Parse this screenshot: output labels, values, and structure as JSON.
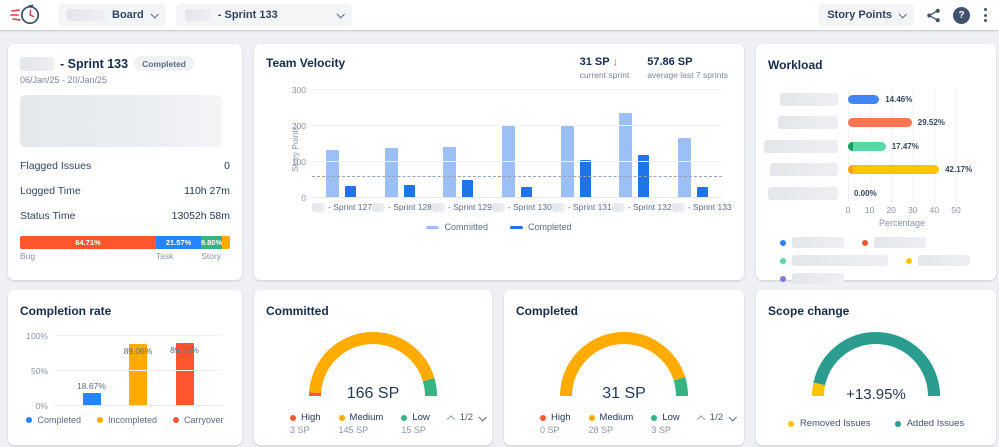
{
  "topbar": {
    "board_dropdown": "Board",
    "sprint_dropdown": "- Sprint 133",
    "unit_dropdown": "Story Points",
    "help_glyph": "?"
  },
  "cards": {
    "sprint": {
      "title": "- Sprint 133",
      "badge": "Completed",
      "dates": "06/Jan/25 - 20/Jan/25",
      "stats": [
        {
          "label": "Flagged Issues",
          "value": "0"
        },
        {
          "label": "Logged Time",
          "value": "110h 27m"
        },
        {
          "label": "Status Time",
          "value": "13052h 58m"
        }
      ]
    },
    "velocity": {
      "title": "Team Velocity",
      "current_value": "31 SP",
      "current_trend": "↓",
      "current_caption": "current sprint",
      "average_value": "57.86 SP",
      "average_caption": "average last 7 sprints"
    },
    "workload": {
      "title": "Workload"
    },
    "completion": {
      "title": "Completion rate"
    },
    "committed": {
      "title": "Committed"
    },
    "completed": {
      "title": "Completed"
    },
    "scope": {
      "title": "Scope change"
    }
  },
  "chart_data": {
    "issue_breakdown": {
      "type": "bar",
      "segments": [
        {
          "label": "Bug",
          "value_label": "64.71%",
          "pct": 64.71,
          "color": "#ff5630"
        },
        {
          "label": "Task",
          "value_label": "21.57%",
          "pct": 21.57,
          "color": "#2684ff"
        },
        {
          "label": "Story",
          "value_label": "9.80%",
          "pct": 9.8,
          "color": "#36b37e"
        },
        {
          "label": "",
          "value_label": "",
          "pct": 3.92,
          "color": "#ffab00"
        }
      ]
    },
    "team_velocity": {
      "type": "bar",
      "ylabel": "Story Points",
      "ylim": [
        0,
        300
      ],
      "yticks": [
        0,
        100,
        200,
        300
      ],
      "average_line": 57.86,
      "categories": [
        "- Sprint 127",
        "- Sprint 128",
        "- Sprint 129",
        "- Sprint 130",
        "- Sprint 131",
        "- Sprint 132",
        "- Sprint 133"
      ],
      "series": [
        {
          "name": "Committed",
          "color": "#9bc0f5",
          "values": [
            133,
            138,
            143,
            201,
            199,
            236,
            166
          ]
        },
        {
          "name": "Completed",
          "color": "#2173e8",
          "values": [
            32,
            37,
            50,
            31,
            105,
            119,
            31
          ]
        }
      ]
    },
    "workload": {
      "type": "bar-horizontal",
      "xlabel": "Percentage",
      "xlim": [
        0,
        50
      ],
      "xticks": [
        0,
        10,
        20,
        30,
        40,
        50
      ],
      "rows": [
        {
          "pct": 14.46,
          "label": "14.46%",
          "color": "#4285f4"
        },
        {
          "pct": 29.52,
          "label": "29.52%",
          "color": "#ff7452"
        },
        {
          "pct": 17.47,
          "label": "17.47%",
          "color": "#57d9a3",
          "accent": "#1f9e63"
        },
        {
          "pct": 42.17,
          "label": "42.17%",
          "color": "#ffc400",
          "accent": "#ff9f1a"
        },
        {
          "pct": 0,
          "label": "0.00%",
          "color": "#4285f4"
        }
      ],
      "legend_colors": [
        "#2684ff",
        "#ff5630",
        "#57d9a3",
        "#ffc400",
        "#8777d9"
      ]
    },
    "completion_rate": {
      "type": "bar",
      "ylim": [
        0,
        100
      ],
      "yticks": [
        "0%",
        "50%",
        "100%"
      ],
      "categories": [
        "Completed",
        "Incompleted",
        "Carryover"
      ],
      "values": [
        18.67,
        89.06,
        89.76
      ],
      "value_labels": [
        "18.67%",
        "89.06%",
        "89.76%"
      ],
      "colors": [
        "#2684ff",
        "#ffab00",
        "#ff5630"
      ]
    },
    "committed_gauge": {
      "type": "gauge",
      "total_label": "166 SP",
      "pager": "1/2",
      "segments": [
        {
          "name": "High",
          "value": 3,
          "value_label": "3 SP",
          "color": "#ff5630"
        },
        {
          "name": "Medium",
          "value": 145,
          "value_label": "145 SP",
          "color": "#ffab00"
        },
        {
          "name": "Low",
          "value": 15,
          "value_label": "15 SP",
          "color": "#36b37e"
        }
      ]
    },
    "completed_gauge": {
      "type": "gauge",
      "total_label": "31 SP",
      "pager": "1/2",
      "segments": [
        {
          "name": "High",
          "value": 0,
          "value_label": "0 SP",
          "color": "#ff5630"
        },
        {
          "name": "Medium",
          "value": 28,
          "value_label": "28 SP",
          "color": "#ffab00"
        },
        {
          "name": "Low",
          "value": 3,
          "value_label": "3 SP",
          "color": "#36b37e"
        }
      ]
    },
    "scope_change_gauge": {
      "type": "gauge",
      "total_label": "+13.95%",
      "segments": [
        {
          "name": "Removed Issues",
          "value": 6.7,
          "color": "#ffc400"
        },
        {
          "name": "Added Issues",
          "value": 93.3,
          "color": "#2a9d8f"
        }
      ]
    }
  }
}
